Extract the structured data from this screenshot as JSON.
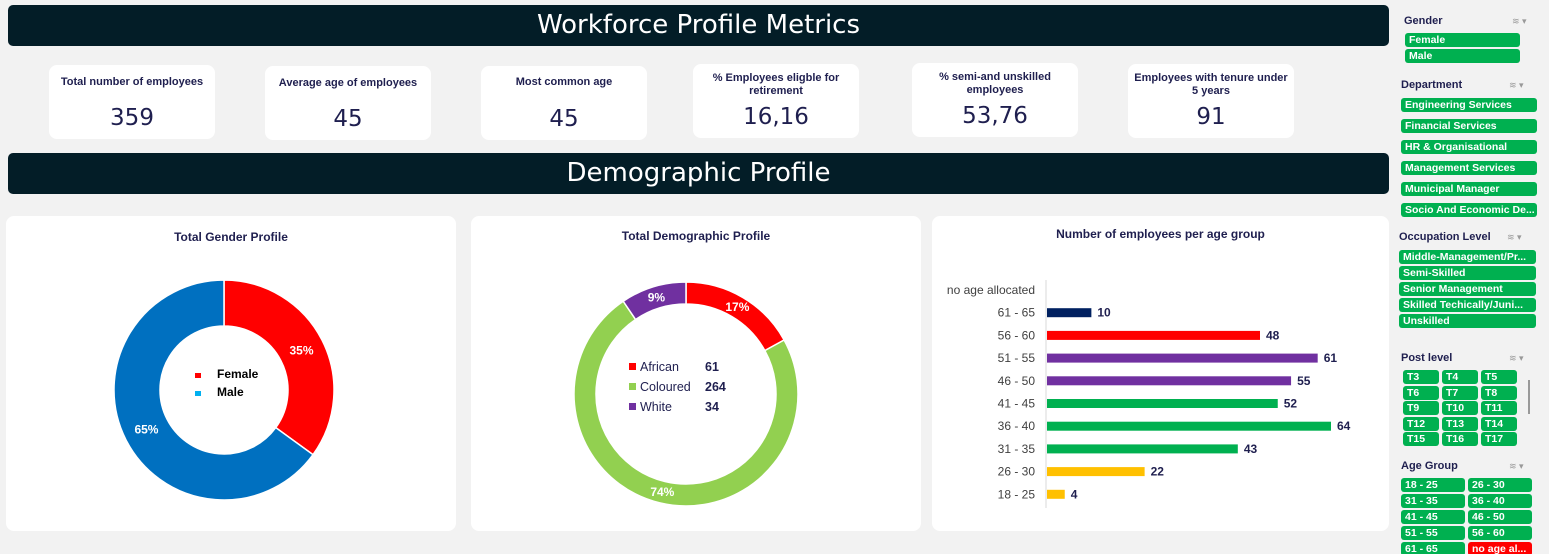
{
  "header": {
    "title": "Workforce Profile Metrics"
  },
  "kpis": [
    {
      "label": "Total number of employees",
      "value": "359"
    },
    {
      "label": "Average age of employees",
      "value": "45"
    },
    {
      "label": "Most common age",
      "value": "45"
    },
    {
      "label": "% Employees eligble for retirement",
      "value": "16,16"
    },
    {
      "label": "% semi-and unskilled employees",
      "value": "53,76"
    },
    {
      "label": "Employees with tenure under 5 years",
      "value": "91"
    }
  ],
  "section": {
    "title": "Demographic Profile"
  },
  "colors": {
    "banner": "#031d27",
    "green": "#00b050",
    "red": "#ff0000",
    "blue": "#0070c0",
    "purple": "#7030a0",
    "lightgreen": "#92d050",
    "navy": "#002060",
    "yellow": "#ffc000"
  },
  "chart_data": [
    {
      "type": "pie",
      "title": "Total Gender Profile",
      "categories": [
        "Female",
        "Male"
      ],
      "values": [
        35,
        65
      ],
      "labels": [
        "35%",
        "65%"
      ],
      "colors": [
        "#ff0000",
        "#0070c0"
      ],
      "legend": "center"
    },
    {
      "type": "pie",
      "title": "Total Demographic Profile",
      "categories": [
        "African",
        "Coloured",
        "White"
      ],
      "values": [
        61,
        264,
        34
      ],
      "labels": [
        "17%",
        "74%",
        "9%"
      ],
      "colors": [
        "#ff0000",
        "#92d050",
        "#7030a0"
      ],
      "legend": "center"
    },
    {
      "type": "bar",
      "title": "Number of employees per age group",
      "categories": [
        "no age allocated",
        "61 - 65",
        "56 - 60",
        "51 - 55",
        "46 - 50",
        "41 - 45",
        "36 - 40",
        "31 - 35",
        "26 - 30",
        "18 - 25"
      ],
      "values": [
        null,
        10,
        48,
        61,
        55,
        52,
        64,
        43,
        22,
        4
      ],
      "colors": [
        "#002060",
        "#002060",
        "#ff0000",
        "#7030a0",
        "#7030a0",
        "#00b050",
        "#00b050",
        "#00b050",
        "#ffc000",
        "#ffc000"
      ],
      "orientation": "horizontal",
      "xlim": [
        0,
        64
      ]
    }
  ],
  "slicers": {
    "gender": {
      "title": "Gender",
      "items": [
        "Female",
        "Male"
      ]
    },
    "department": {
      "title": "Department",
      "items": [
        "Engineering Services",
        "Financial Services",
        "HR & Organisational",
        "Management Services",
        "Municipal Manager",
        "Socio And Economic De..."
      ]
    },
    "occupation": {
      "title": "Occupation Level",
      "items": [
        "Middle-Management/Pr...",
        "Semi-Skilled",
        "Senior Management",
        "Skilled Techically/Juni...",
        "Unskilled"
      ]
    },
    "post_level": {
      "title": "Post level",
      "items": [
        "T3",
        "T4",
        "T5",
        "T6",
        "T7",
        "T8",
        "T9",
        "T10",
        "T11",
        "T12",
        "T13",
        "T14",
        "T15",
        "T16",
        "T17"
      ]
    },
    "age_group": {
      "title": "Age Group",
      "items": [
        "18 - 25",
        "26 - 30",
        "31 - 35",
        "36 - 40",
        "41 - 45",
        "46 - 50",
        "51 - 55",
        "56 - 60",
        "61 - 65",
        "no age al..."
      ]
    }
  }
}
